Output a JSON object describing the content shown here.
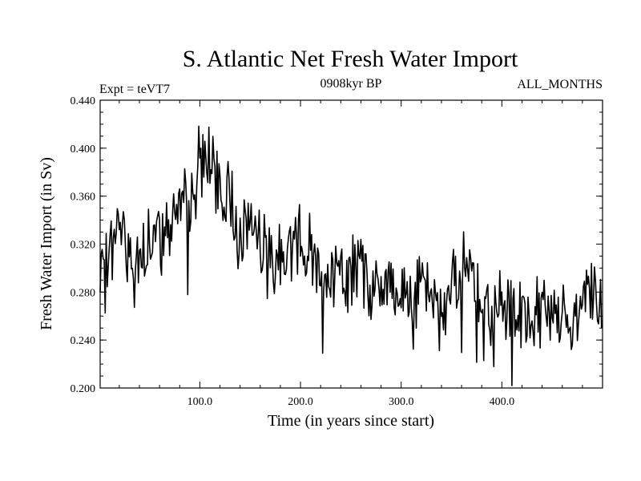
{
  "chart_data": {
    "type": "line",
    "title": "S. Atlantic Net Fresh Water Import",
    "experiment": "Expt = teVT7",
    "period": "0908kyr BP",
    "months": "ALL_MONTHS",
    "xlabel": "Time (in years since start)",
    "ylabel": "Fresh Water Import (in Sv)",
    "xlim": [
      1,
      500
    ],
    "ylim": [
      0.2,
      0.44
    ],
    "x_ticks": [
      100,
      200,
      300,
      400
    ],
    "x_tick_labels": [
      "100.0",
      "200.0",
      "300.0",
      "400.0"
    ],
    "y_ticks": [
      0.2,
      0.24,
      0.28,
      0.32,
      0.36,
      0.4,
      0.44
    ],
    "y_tick_labels": [
      "0.200",
      "0.240",
      "0.280",
      "0.320",
      "0.360",
      "0.400",
      "0.440"
    ],
    "grid": false,
    "line_color": "#000000",
    "series": [
      {
        "name": "Fresh Water Import",
        "x": [
          1,
          10,
          20,
          30,
          40,
          50,
          60,
          70,
          80,
          90,
          100,
          110,
          120,
          130,
          140,
          150,
          160,
          170,
          180,
          190,
          200,
          210,
          220,
          230,
          240,
          250,
          260,
          270,
          280,
          290,
          300,
          310,
          320,
          330,
          340,
          350,
          360,
          370,
          380,
          390,
          400,
          410,
          420,
          430,
          440,
          450,
          460,
          470,
          480,
          490,
          500
        ],
        "values": [
          0.28,
          0.31,
          0.335,
          0.315,
          0.3,
          0.32,
          0.325,
          0.345,
          0.355,
          0.35,
          0.39,
          0.395,
          0.355,
          0.36,
          0.33,
          0.34,
          0.33,
          0.3,
          0.31,
          0.32,
          0.325,
          0.315,
          0.3,
          0.285,
          0.29,
          0.295,
          0.3,
          0.285,
          0.28,
          0.285,
          0.275,
          0.28,
          0.285,
          0.27,
          0.26,
          0.285,
          0.3,
          0.31,
          0.265,
          0.26,
          0.262,
          0.255,
          0.26,
          0.258,
          0.262,
          0.255,
          0.265,
          0.25,
          0.27,
          0.275,
          0.26
        ]
      }
    ]
  }
}
